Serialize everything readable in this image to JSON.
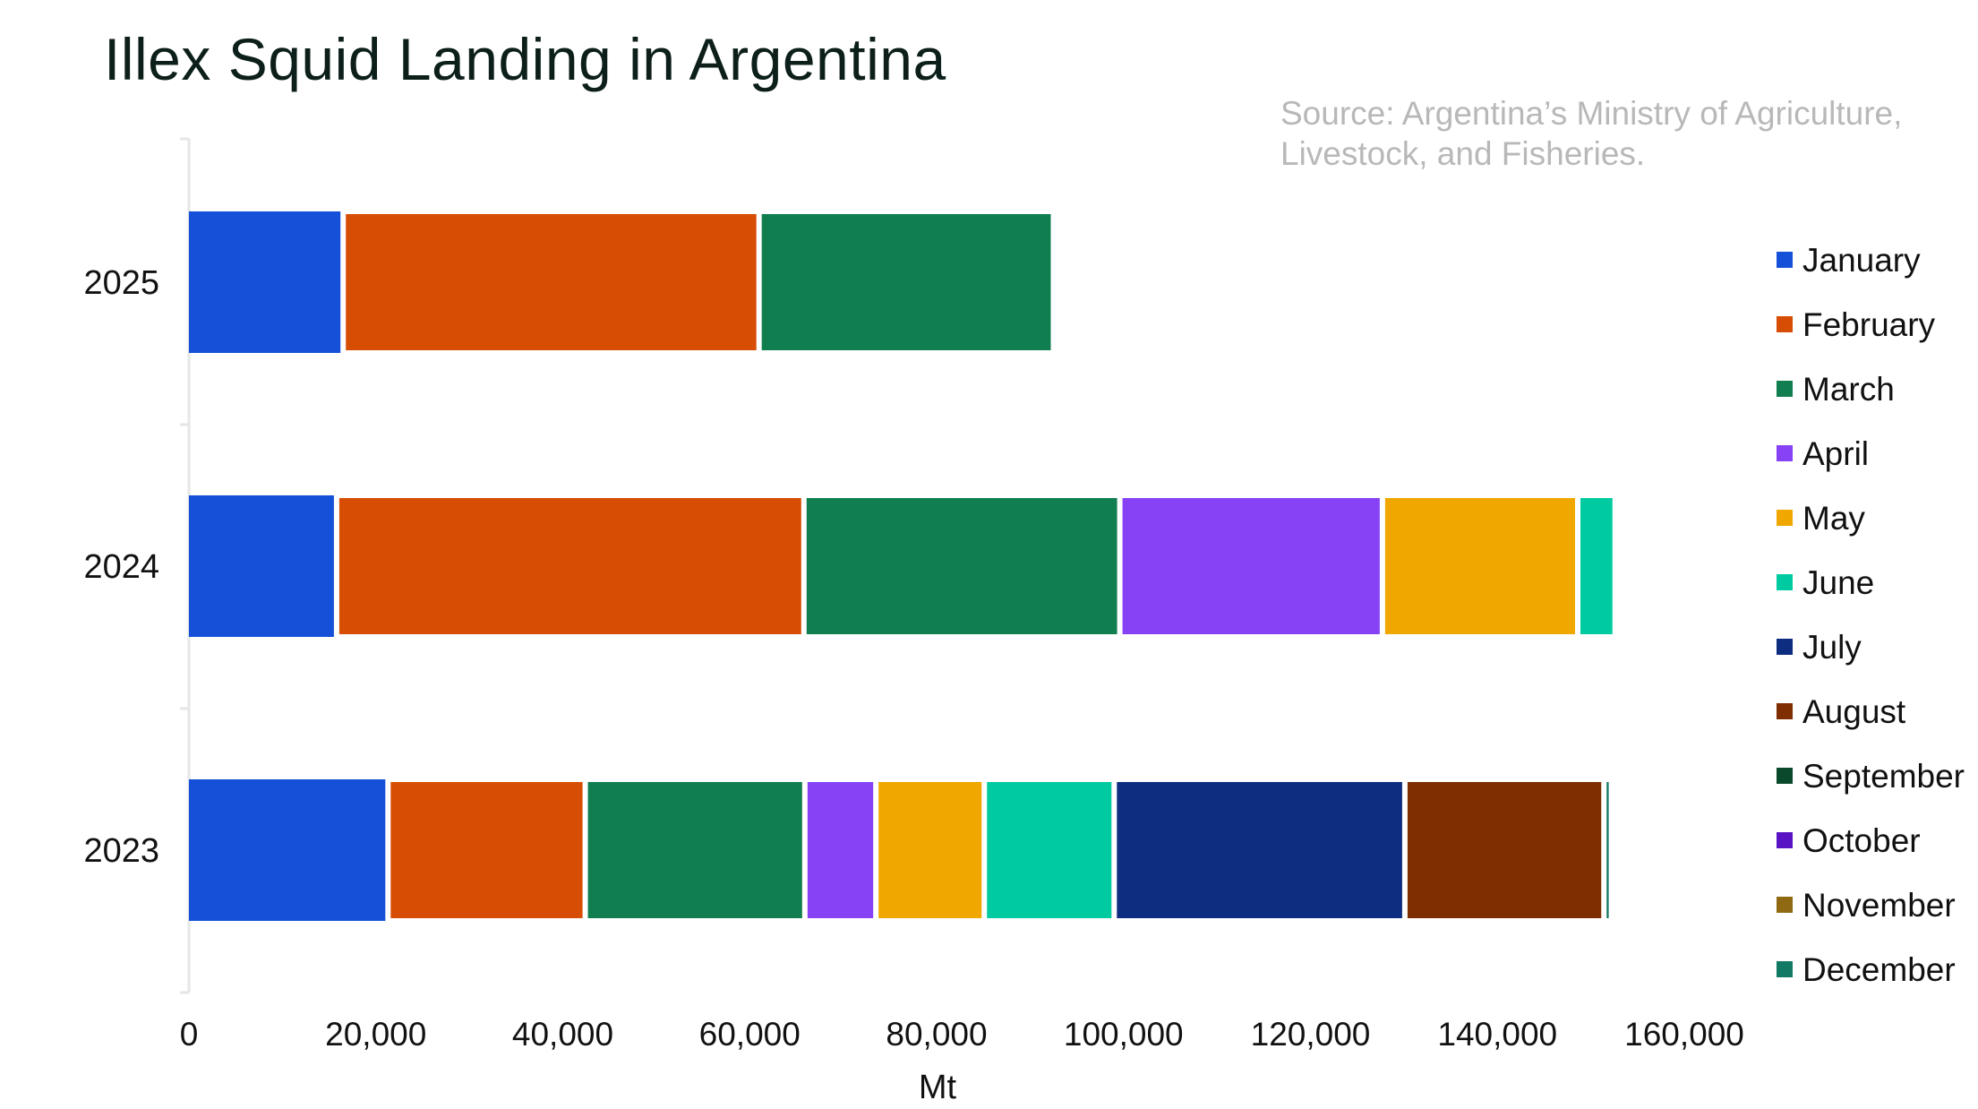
{
  "chart_data": {
    "type": "bar",
    "orientation": "horizontal",
    "stacked": true,
    "title": "Illex Squid Landing in Argentina",
    "source": "Source: Argentina’s Ministry of Agriculture, Livestock, and Fisheries.",
    "xlabel": "Mt",
    "ylabel": "",
    "xlim": [
      0,
      160000
    ],
    "x_ticks": [
      0,
      20000,
      40000,
      60000,
      80000,
      100000,
      120000,
      140000,
      160000
    ],
    "x_tick_labels": [
      "0",
      "20,000",
      "40,000",
      "60,000",
      "80,000",
      "100,000",
      "120,000",
      "140,000",
      "160,000"
    ],
    "categories": [
      "2025",
      "2024",
      "2023"
    ],
    "legend_position": "right",
    "grid": false,
    "series": [
      {
        "name": "January",
        "color": "#1450d8",
        "values": [
          16500,
          15800,
          21300
        ]
      },
      {
        "name": "February",
        "color": "#d64d03",
        "values": [
          44500,
          50000,
          21100
        ]
      },
      {
        "name": "March",
        "color": "#107e4f",
        "values": [
          31500,
          33800,
          23500
        ]
      },
      {
        "name": "April",
        "color": "#8642f4",
        "values": [
          0,
          28100,
          7600
        ]
      },
      {
        "name": "May",
        "color": "#f0a800",
        "values": [
          0,
          20900,
          11600
        ]
      },
      {
        "name": "June",
        "color": "#00cba0",
        "values": [
          0,
          4000,
          13900
        ]
      },
      {
        "name": "July",
        "color": "#0c2d80",
        "values": [
          0,
          0,
          31100
        ]
      },
      {
        "name": "August",
        "color": "#7e2e00",
        "values": [
          0,
          0,
          21300
        ]
      },
      {
        "name": "September",
        "color": "#0a4a2b",
        "values": [
          0,
          0,
          0
        ]
      },
      {
        "name": "October",
        "color": "#5a13c4",
        "values": [
          0,
          0,
          0
        ]
      },
      {
        "name": "November",
        "color": "#8f6a12",
        "values": [
          0,
          0,
          0
        ]
      },
      {
        "name": "December",
        "color": "#127a64",
        "values": [
          0,
          0,
          800
        ]
      }
    ]
  }
}
